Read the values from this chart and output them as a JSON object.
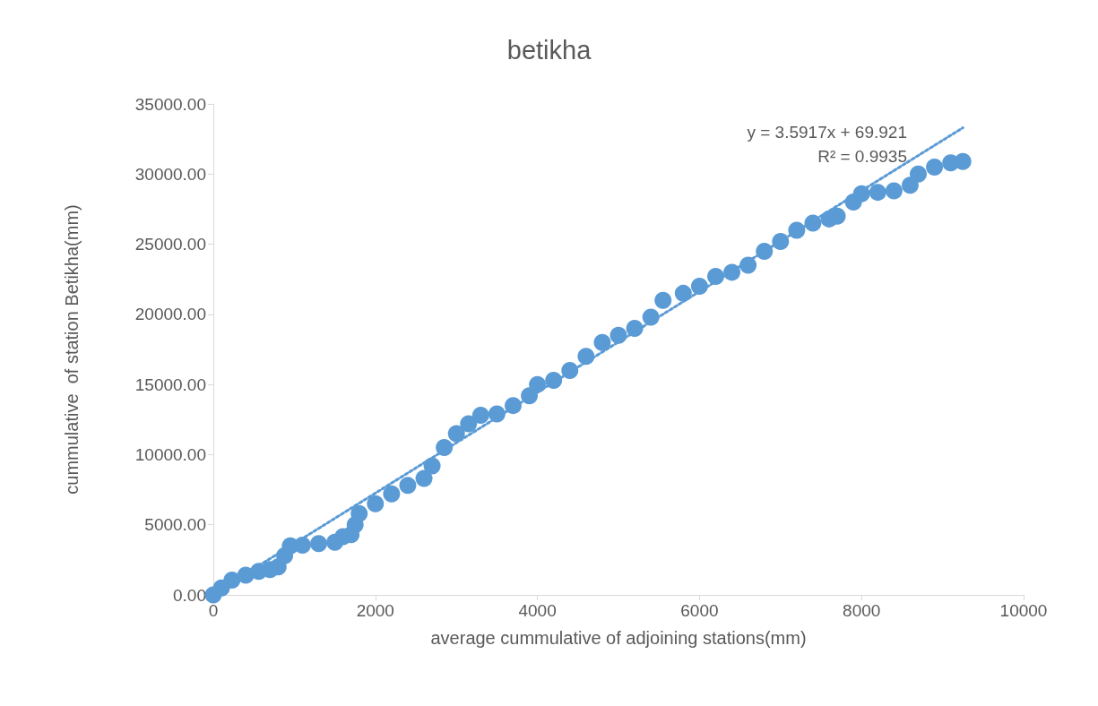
{
  "chart_data": {
    "type": "scatter",
    "title": "betikha",
    "xlabel": "average cummulative of adjoining stations(mm)",
    "ylabel": "cummulative  of station Betikha(mm)",
    "xlim": [
      0,
      10000
    ],
    "xticks": [
      0,
      2000,
      4000,
      6000,
      8000,
      10000
    ],
    "ylim": [
      0,
      35000
    ],
    "yticks": [
      {
        "value": 0,
        "label": "0.00"
      },
      {
        "value": 5000,
        "label": "5000.00"
      },
      {
        "value": 10000,
        "label": "10000.00"
      },
      {
        "value": 15000,
        "label": "15000.00"
      },
      {
        "value": 20000,
        "label": "20000.00"
      },
      {
        "value": 25000,
        "label": "25000.00"
      },
      {
        "value": 30000,
        "label": "30000.00"
      },
      {
        "value": 35000,
        "label": "35000.00"
      }
    ],
    "grid": false,
    "marker": "circle",
    "annotations": [
      "y = 3.5917x + 69.921\nR² = 0.9935"
    ],
    "series": [
      {
        "color": "#5b9bd5",
        "x": [
          0,
          100,
          230,
          400,
          560,
          700,
          800,
          880,
          950,
          1100,
          1300,
          1500,
          1600,
          1700,
          1750,
          1800,
          2000,
          2200,
          2400,
          2600,
          2700,
          2850,
          3000,
          3150,
          3300,
          3500,
          3700,
          3900,
          4000,
          4200,
          4400,
          4600,
          4800,
          5000,
          5200,
          5400,
          5550,
          5800,
          6000,
          6200,
          6400,
          6600,
          6800,
          7000,
          7200,
          7400,
          7600,
          7700,
          7900,
          8000,
          8200,
          8400,
          8600,
          8700,
          8900,
          9100,
          9250
        ],
        "values": [
          0,
          500,
          1050,
          1400,
          1670,
          1800,
          2000,
          2800,
          3500,
          3550,
          3650,
          3750,
          4150,
          4300,
          5000,
          5800,
          6500,
          7200,
          7800,
          8300,
          9200,
          10500,
          11500,
          12200,
          12800,
          12900,
          13500,
          14200,
          15000,
          15300,
          16000,
          17000,
          18000,
          18500,
          19000,
          19800,
          21000,
          21500,
          22000,
          22700,
          23000,
          23500,
          24500,
          25200,
          26000,
          26500,
          26800,
          27000,
          28000,
          28600,
          28700,
          28800,
          29200,
          30000,
          30500,
          30800,
          30900
        ]
      },
      {
        "type": "line",
        "color": "#5b9bd5",
        "marker": "none",
        "line_style": "dotted",
        "x": [
          0,
          9250
        ],
        "values": [
          70,
          33300
        ]
      }
    ]
  }
}
